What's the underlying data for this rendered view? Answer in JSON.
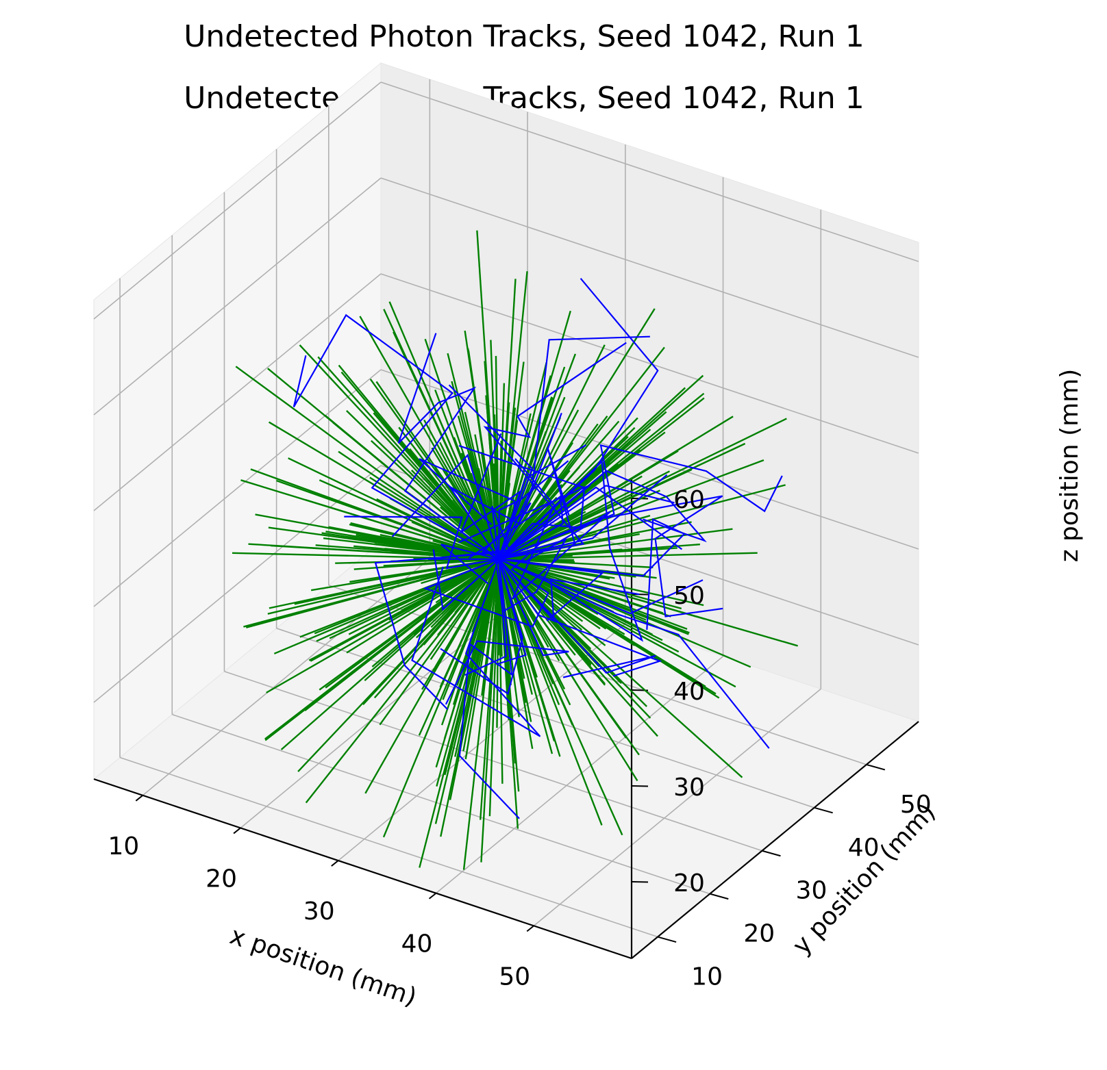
{
  "chart_data": {
    "type": "line",
    "projection": "3d",
    "titles": [
      "Undetected Photon Tracks, Seed 1042, Run 1",
      "Undetected Photon Tracks, Seed 1042, Run 1"
    ],
    "xlabel": "x position (mm)",
    "ylabel": "y position (mm)",
    "zlabel": "z position (mm)",
    "xlim": [
      5,
      60
    ],
    "ylim": [
      5,
      60
    ],
    "zlim": [
      12,
      62
    ],
    "xticks": [
      "10",
      "20",
      "30",
      "40",
      "50"
    ],
    "yticks": [
      "10",
      "20",
      "30",
      "40",
      "50"
    ],
    "zticks": [
      "20",
      "30",
      "40",
      "50",
      "60"
    ],
    "grid": true,
    "origin": [
      32,
      32,
      32
    ],
    "series": [
      {
        "color": "#008000",
        "style": "straight radial tracks from the source point",
        "count": 380,
        "length_range_mm": [
          8,
          30
        ]
      },
      {
        "color": "#0000ff",
        "style": "scattered multi-segment tracks from the source point",
        "count": 45,
        "segments_range": [
          2,
          5
        ],
        "step_range_mm": [
          5,
          14
        ]
      }
    ]
  }
}
